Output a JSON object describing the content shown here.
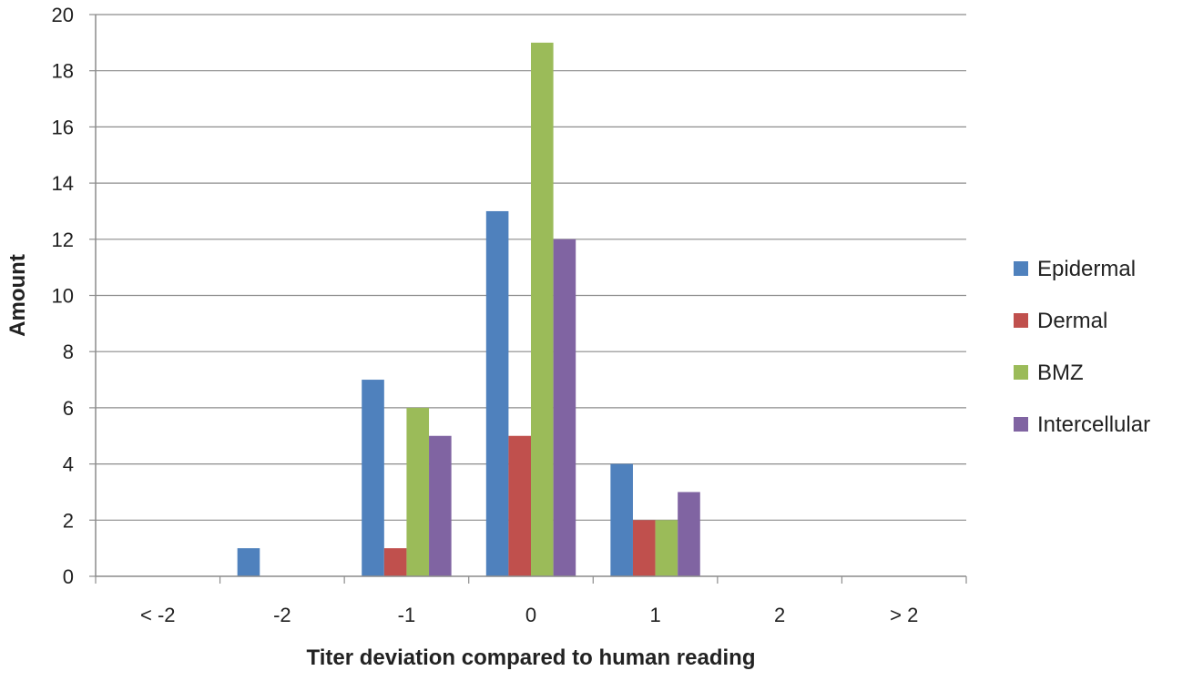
{
  "chart_data": {
    "type": "bar",
    "title": "",
    "xlabel": "Titer deviation compared to human reading",
    "ylabel": "Amount",
    "categories": [
      "< -2",
      "-2",
      "-1",
      "0",
      "1",
      "2",
      "> 2"
    ],
    "series": [
      {
        "name": "Epidermal",
        "values": [
          0,
          1,
          7,
          13,
          4,
          0,
          0
        ],
        "color": "#4f81bd"
      },
      {
        "name": "Dermal",
        "values": [
          0,
          0,
          1,
          5,
          2,
          0,
          0
        ],
        "color": "#c0504d"
      },
      {
        "name": "BMZ",
        "values": [
          0,
          0,
          6,
          19,
          2,
          0,
          0
        ],
        "color": "#9bbb59"
      },
      {
        "name": "Intercellular",
        "values": [
          0,
          0,
          5,
          12,
          3,
          0,
          0
        ],
        "color": "#8064a2"
      }
    ],
    "ylim": [
      0,
      20
    ],
    "yticks": [
      0,
      2,
      4,
      6,
      8,
      10,
      12,
      14,
      16,
      18,
      20
    ],
    "grid": true,
    "legend": "right"
  }
}
